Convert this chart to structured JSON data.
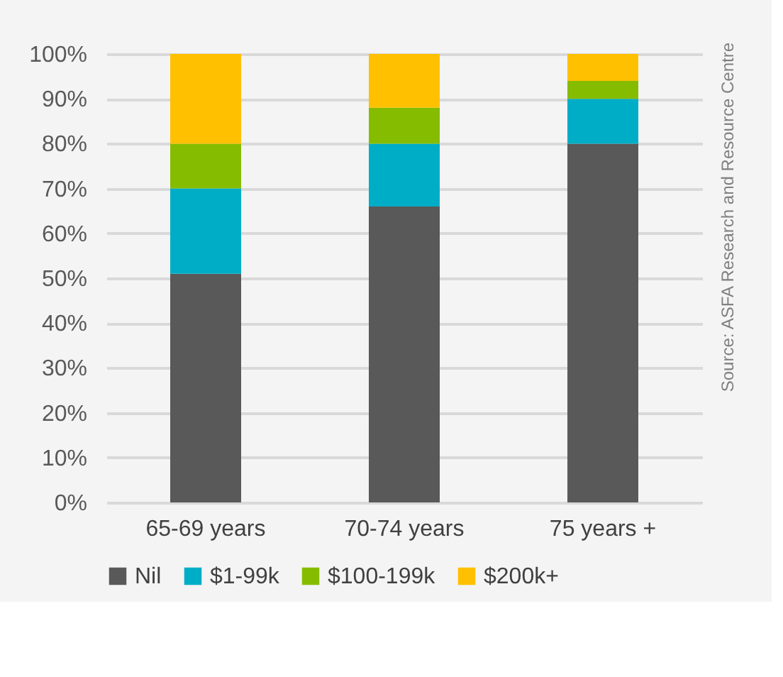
{
  "chart_data": {
    "type": "bar",
    "stacked": true,
    "categories": [
      "65-69 years",
      "70-74 years",
      "75 years +"
    ],
    "series": [
      {
        "name": "Nil",
        "color": "#595959",
        "values": [
          51,
          66,
          80
        ]
      },
      {
        "name": "$1-99k",
        "color": "#00adc6",
        "values": [
          19,
          14,
          10
        ]
      },
      {
        "name": "$100-199k",
        "color": "#86bc00",
        "values": [
          10,
          8,
          4
        ]
      },
      {
        "name": "$200k+",
        "color": "#ffc000",
        "values": [
          20,
          12,
          6
        ]
      }
    ],
    "ylim": [
      0,
      100
    ],
    "yticks": [
      {
        "value": 0,
        "label": "0%"
      },
      {
        "value": 10,
        "label": "10%"
      },
      {
        "value": 20,
        "label": "20%"
      },
      {
        "value": 30,
        "label": "30%"
      },
      {
        "value": 40,
        "label": "40%"
      },
      {
        "value": 50,
        "label": "50%"
      },
      {
        "value": 60,
        "label": "60%"
      },
      {
        "value": 70,
        "label": "70%"
      },
      {
        "value": 80,
        "label": "80%"
      },
      {
        "value": 90,
        "label": "90%"
      },
      {
        "value": 100,
        "label": "100%"
      }
    ],
    "grid": "y",
    "legend": "bottom",
    "annotations": [
      "Source: ASFA Research and Resource Centre"
    ]
  }
}
